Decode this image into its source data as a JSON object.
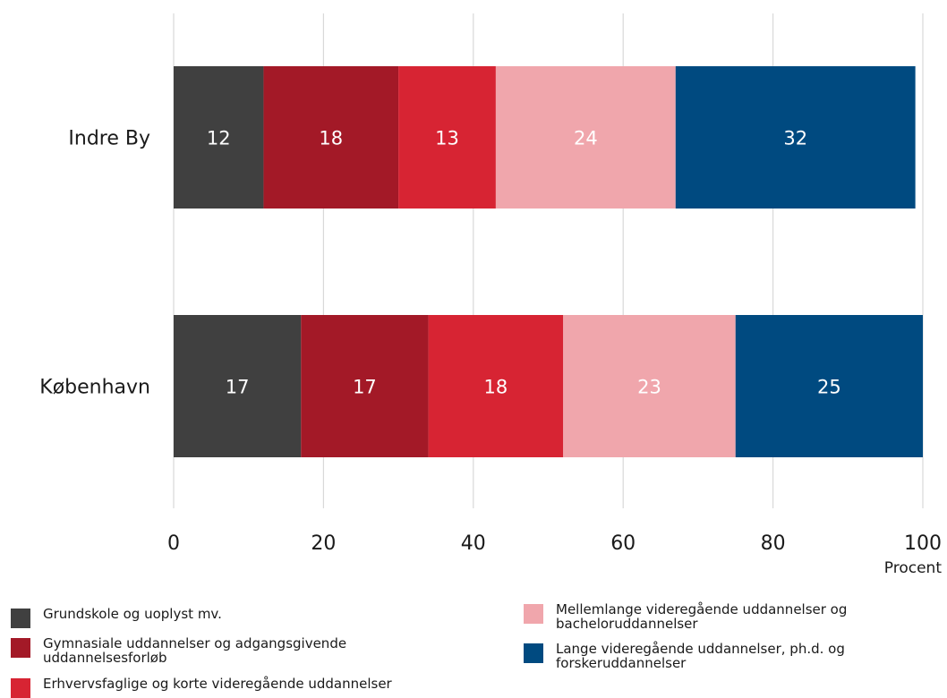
{
  "chart_data": {
    "type": "bar",
    "orientation": "horizontal",
    "stacked": true,
    "categories": [
      "Indre By",
      "København"
    ],
    "series": [
      {
        "name": "Grundskole og uoplyst mv.",
        "color": "#404040",
        "label_color": "#ffffff",
        "values": [
          12,
          17
        ]
      },
      {
        "name": "Gymnasiale uddannelser og adgangsgivende uddannelsesforløb",
        "color": "#a31927",
        "label_color": "#ffffff",
        "values": [
          18,
          17
        ]
      },
      {
        "name": "Erhvervsfaglige og korte videregående uddannelser",
        "color": "#d72433",
        "label_color": "#ffffff",
        "values": [
          13,
          18
        ]
      },
      {
        "name": "Mellemlange videregående uddannelser og bacheloruddannelser",
        "color": "#f0a6ac",
        "label_color": "#ffffff",
        "values": [
          24,
          23
        ]
      },
      {
        "name": "Lange videregående uddannelser, ph.d. og forskeruddannelser",
        "color": "#004a80",
        "label_color": "#ffffff",
        "values": [
          32,
          25
        ]
      }
    ],
    "xlim": [
      0,
      100
    ],
    "xticks": [
      0,
      20,
      40,
      60,
      80,
      100
    ],
    "xlabel": "Procent",
    "ylabel": "",
    "title": "",
    "grid": "vertical",
    "legend_position": "bottom"
  },
  "legend": {
    "items": [
      {
        "label": "Grundskole og uoplyst mv.",
        "color": "#404040"
      },
      {
        "label": "Gymnasiale uddannelser og adgangsgivende uddannelsesforløb",
        "color": "#a31927"
      },
      {
        "label": "Erhvervsfaglige og korte videregående uddannelser",
        "color": "#d72433"
      },
      {
        "label": "Mellemlange videregående uddannelser og bacheloruddannelser",
        "color": "#f0a6ac"
      },
      {
        "label": "Lange videregående uddannelser, ph.d. og forskeruddannelser",
        "color": "#004a80"
      }
    ]
  }
}
